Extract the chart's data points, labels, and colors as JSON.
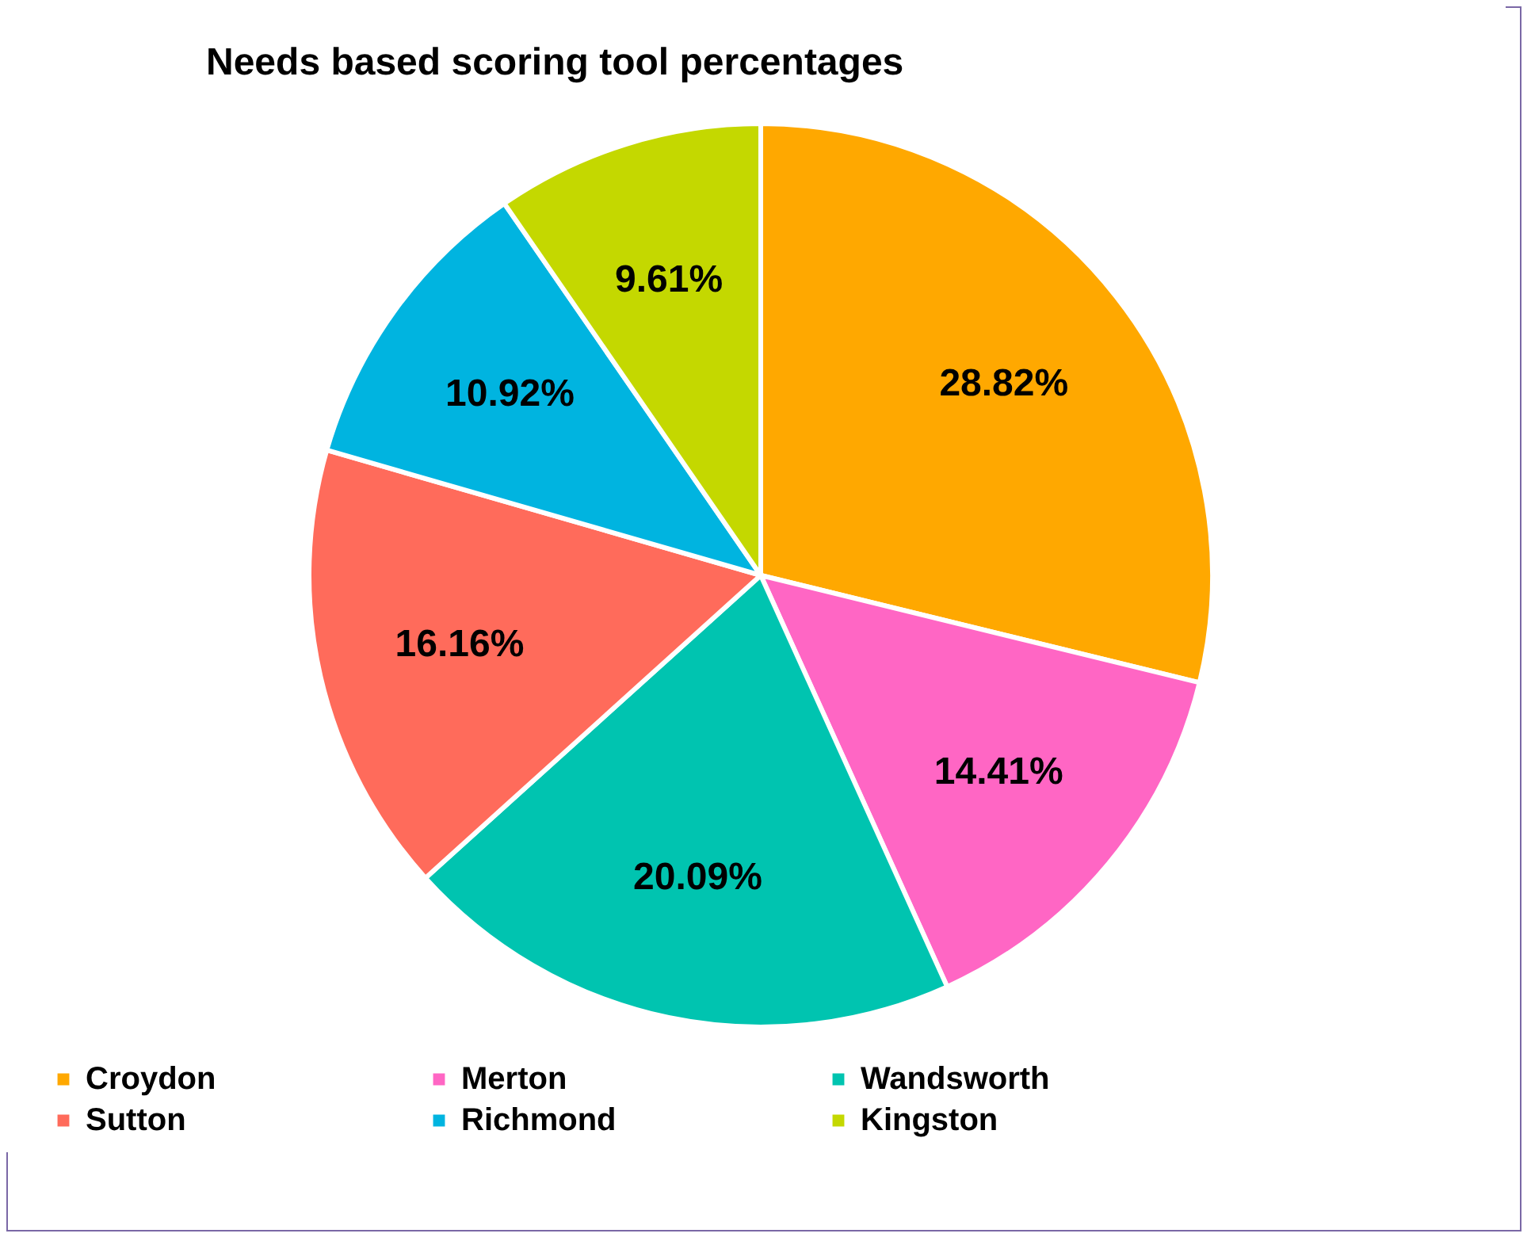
{
  "chart_data": {
    "type": "pie",
    "title": "Needs based scoring tool percentages",
    "categories": [
      "Croydon",
      "Merton",
      "Wandsworth",
      "Sutton",
      "Richmond",
      "Kingston"
    ],
    "values": [
      28.82,
      14.41,
      20.09,
      16.16,
      10.92,
      9.61
    ],
    "colors": [
      "#ffa800",
      "#ff66c4",
      "#00c4b0",
      "#ff6b5b",
      "#00b4e0",
      "#c4d800"
    ],
    "value_labels": [
      "28.82%",
      "14.41%",
      "20.09%",
      "16.16%",
      "10.92%",
      "9.61%"
    ],
    "legend": "bottom"
  }
}
